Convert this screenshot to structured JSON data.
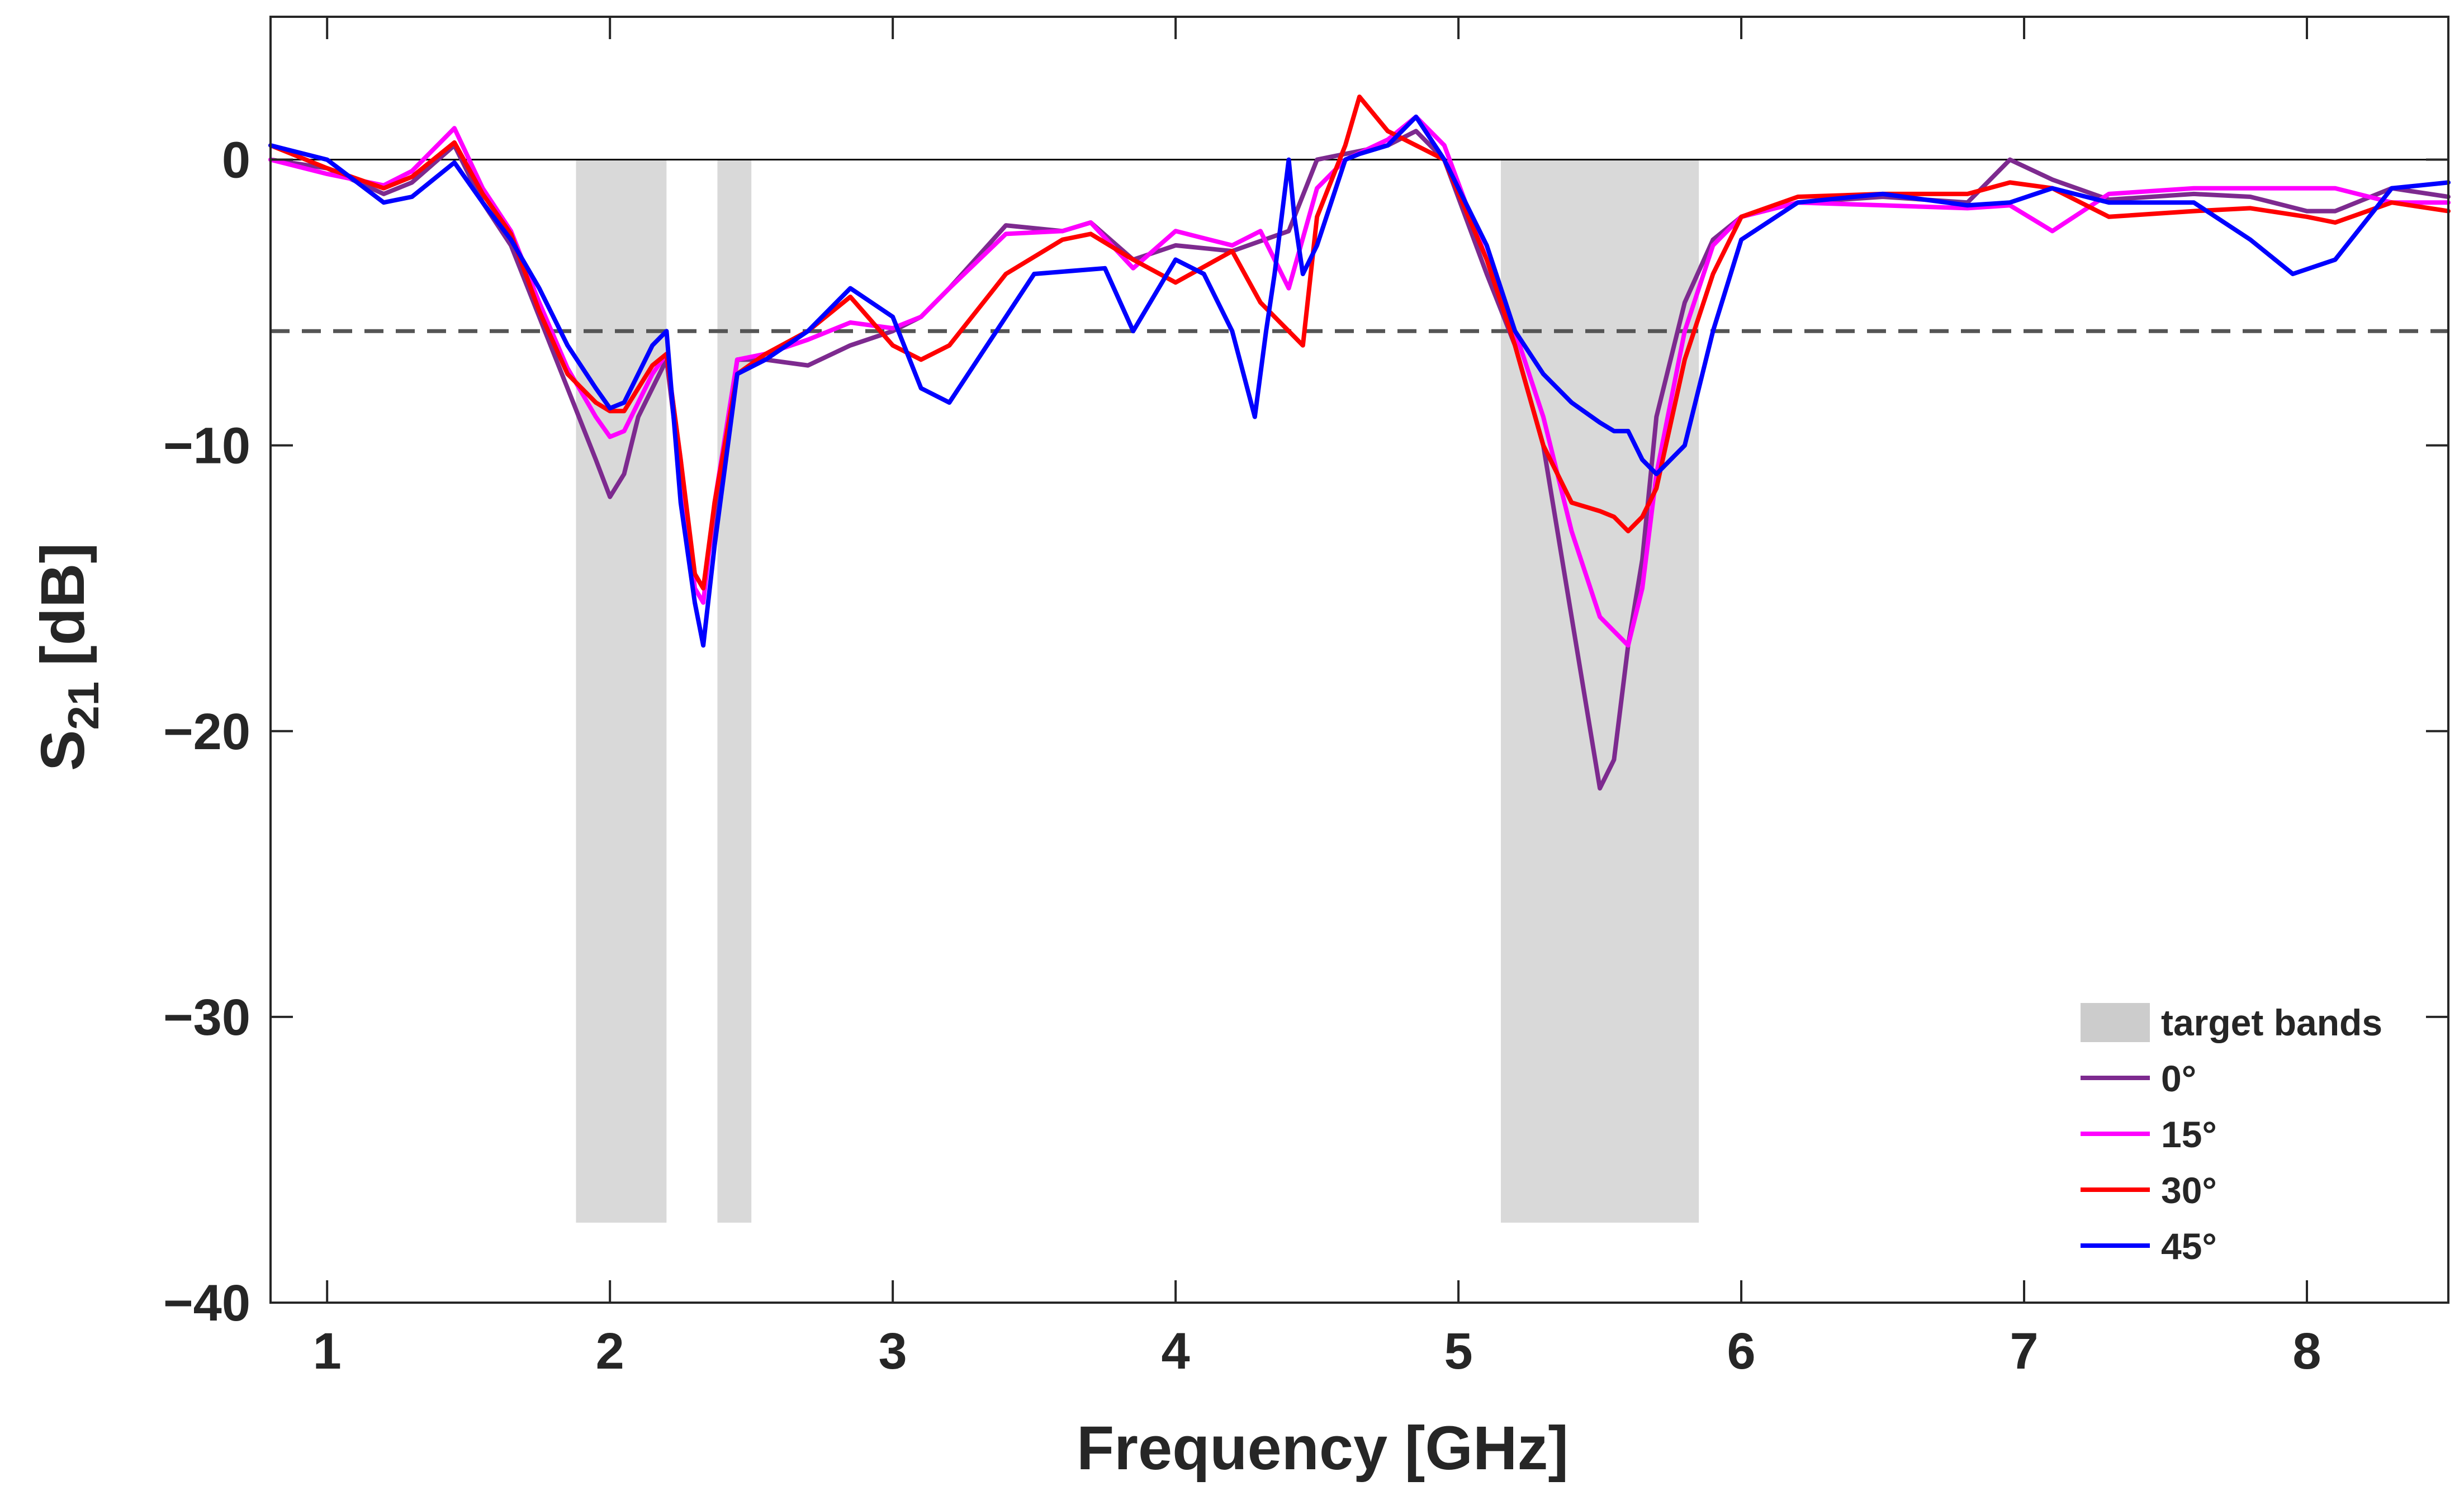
{
  "chart_data": {
    "type": "line",
    "title": "",
    "xlabel": "Frequency [GHz]",
    "ylabel_main": "S",
    "ylabel_sub": "21",
    "ylabel_unit": "[dB]",
    "xlim": [
      0.8,
      8.5
    ],
    "ylim": [
      -40,
      5
    ],
    "xticks": [
      1,
      2,
      3,
      4,
      5,
      6,
      7,
      8
    ],
    "xtick_labels": [
      "1",
      "2",
      "3",
      "4",
      "5",
      "6",
      "7",
      "8"
    ],
    "yticks": [
      -40,
      -30,
      -20,
      -10,
      0
    ],
    "ytick_labels": [
      "−40",
      "−30",
      "−20",
      "−10",
      "0"
    ],
    "reference_lines": [
      {
        "y": 0,
        "style": "solid",
        "color": "#000000"
      },
      {
        "y": -6,
        "style": "dashed",
        "color": "#555555"
      }
    ],
    "target_bands": {
      "name": "target bands",
      "color": "#d9d9d9",
      "y_range": [
        -37.2,
        0
      ],
      "bands": [
        [
          1.88,
          2.2
        ],
        [
          2.38,
          2.5
        ],
        [
          5.15,
          5.85
        ]
      ]
    },
    "legend_position": "lower-right",
    "series": [
      {
        "name": "0°",
        "color": "#7d2a8f",
        "x": [
          0.8,
          1.0,
          1.2,
          1.3,
          1.45,
          1.55,
          1.65,
          1.75,
          1.85,
          1.95,
          2.0,
          2.05,
          2.1,
          2.15,
          2.2,
          2.25,
          2.3,
          2.33,
          2.37,
          2.45,
          2.55,
          2.7,
          2.85,
          3.0,
          3.1,
          3.2,
          3.4,
          3.6,
          3.7,
          3.85,
          4.0,
          4.2,
          4.4,
          4.5,
          4.6,
          4.75,
          4.85,
          4.95,
          5.1,
          5.2,
          5.3,
          5.4,
          5.5,
          5.55,
          5.6,
          5.65,
          5.7,
          5.8,
          5.9,
          6.0,
          6.2,
          6.5,
          6.8,
          6.95,
          7.1,
          7.3,
          7.6,
          7.8,
          8.0,
          8.1,
          8.3,
          8.5
        ],
        "values": [
          0.0,
          -0.3,
          -1.2,
          -0.8,
          0.5,
          -1.5,
          -3.0,
          -5.5,
          -8.0,
          -10.5,
          -11.8,
          -11.0,
          -9.0,
          -8.0,
          -7.0,
          -11.0,
          -14.5,
          -15.0,
          -12.5,
          -7.0,
          -7.0,
          -7.2,
          -6.5,
          -6.0,
          -5.5,
          -4.5,
          -2.3,
          -2.5,
          -2.2,
          -3.5,
          -3.0,
          -3.2,
          -2.5,
          0.0,
          0.2,
          0.5,
          1.0,
          0.0,
          -4.0,
          -6.5,
          -10.0,
          -16.0,
          -22.0,
          -21.0,
          -17.0,
          -14.0,
          -9.0,
          -5.0,
          -2.8,
          -2.0,
          -1.5,
          -1.3,
          -1.5,
          0.0,
          -0.7,
          -1.4,
          -1.2,
          -1.3,
          -1.8,
          -1.8,
          -1.0,
          -1.3
        ]
      },
      {
        "name": "15°",
        "color": "#ff00ff",
        "x": [
          0.8,
          1.0,
          1.2,
          1.3,
          1.45,
          1.55,
          1.65,
          1.75,
          1.85,
          1.95,
          2.0,
          2.05,
          2.1,
          2.15,
          2.2,
          2.25,
          2.3,
          2.33,
          2.37,
          2.45,
          2.55,
          2.7,
          2.85,
          3.0,
          3.1,
          3.2,
          3.4,
          3.6,
          3.7,
          3.85,
          4.0,
          4.2,
          4.3,
          4.4,
          4.5,
          4.6,
          4.75,
          4.85,
          4.95,
          5.1,
          5.2,
          5.3,
          5.4,
          5.5,
          5.55,
          5.6,
          5.65,
          5.7,
          5.8,
          5.9,
          6.0,
          6.2,
          6.5,
          6.8,
          6.95,
          7.1,
          7.3,
          7.6,
          7.8,
          8.0,
          8.1,
          8.3,
          8.5
        ],
        "values": [
          0.0,
          -0.5,
          -0.9,
          -0.4,
          1.1,
          -1.0,
          -2.5,
          -5.0,
          -7.3,
          -9.0,
          -9.7,
          -9.5,
          -8.5,
          -7.5,
          -6.8,
          -10.5,
          -15.0,
          -15.5,
          -12.0,
          -7.0,
          -6.8,
          -6.3,
          -5.7,
          -5.9,
          -5.5,
          -4.5,
          -2.6,
          -2.5,
          -2.2,
          -3.8,
          -2.5,
          -3.0,
          -2.5,
          -4.5,
          -1.0,
          0.0,
          0.7,
          1.5,
          0.5,
          -3.5,
          -6.0,
          -9.0,
          -13.0,
          -16.0,
          -16.5,
          -17.0,
          -15.0,
          -11.0,
          -6.0,
          -3.0,
          -2.0,
          -1.5,
          -1.6,
          -1.7,
          -1.6,
          -2.5,
          -1.2,
          -1.0,
          -1.0,
          -1.0,
          -1.0,
          -1.5,
          -1.5
        ]
      },
      {
        "name": "30°",
        "color": "#ff0000",
        "x": [
          0.8,
          1.0,
          1.2,
          1.3,
          1.45,
          1.55,
          1.65,
          1.75,
          1.85,
          1.95,
          2.0,
          2.05,
          2.1,
          2.15,
          2.2,
          2.25,
          2.3,
          2.33,
          2.37,
          2.45,
          2.55,
          2.7,
          2.85,
          3.0,
          3.1,
          3.2,
          3.4,
          3.6,
          3.7,
          3.85,
          4.0,
          4.2,
          4.3,
          4.4,
          4.45,
          4.5,
          4.6,
          4.65,
          4.75,
          4.85,
          4.95,
          5.1,
          5.2,
          5.3,
          5.4,
          5.5,
          5.55,
          5.6,
          5.65,
          5.7,
          5.8,
          5.9,
          6.0,
          6.2,
          6.5,
          6.8,
          6.95,
          7.1,
          7.3,
          7.6,
          7.8,
          8.0,
          8.1,
          8.3,
          8.5
        ],
        "values": [
          0.5,
          -0.3,
          -1.0,
          -0.6,
          0.6,
          -1.2,
          -2.6,
          -5.3,
          -7.5,
          -8.5,
          -8.8,
          -8.8,
          -8.0,
          -7.2,
          -6.8,
          -10.5,
          -14.5,
          -15.0,
          -12.0,
          -7.5,
          -6.8,
          -6.0,
          -4.8,
          -6.5,
          -7.0,
          -6.5,
          -4.0,
          -2.8,
          -2.6,
          -3.5,
          -4.3,
          -3.2,
          -5.0,
          -6.0,
          -6.5,
          -2.0,
          0.5,
          2.2,
          1.0,
          0.5,
          0.0,
          -3.5,
          -6.5,
          -10.0,
          -12.0,
          -12.3,
          -12.5,
          -13.0,
          -12.5,
          -11.5,
          -7.0,
          -4.0,
          -2.0,
          -1.3,
          -1.2,
          -1.2,
          -0.8,
          -1.0,
          -2.0,
          -1.8,
          -1.7,
          -2.0,
          -2.2,
          -1.5,
          -1.8
        ]
      },
      {
        "name": "45°",
        "color": "#0000ff",
        "x": [
          0.8,
          1.0,
          1.2,
          1.3,
          1.45,
          1.55,
          1.65,
          1.75,
          1.85,
          1.95,
          2.0,
          2.05,
          2.1,
          2.15,
          2.2,
          2.25,
          2.3,
          2.33,
          2.37,
          2.45,
          2.55,
          2.7,
          2.85,
          3.0,
          3.1,
          3.2,
          3.3,
          3.5,
          3.75,
          3.85,
          4.0,
          4.1,
          4.2,
          4.28,
          4.32,
          4.35,
          4.4,
          4.42,
          4.45,
          4.5,
          4.6,
          4.65,
          4.75,
          4.85,
          4.95,
          5.1,
          5.2,
          5.3,
          5.4,
          5.5,
          5.55,
          5.6,
          5.65,
          5.7,
          5.8,
          5.9,
          6.0,
          6.2,
          6.5,
          6.8,
          6.95,
          7.1,
          7.3,
          7.6,
          7.8,
          7.95,
          8.1,
          8.3,
          8.5
        ],
        "values": [
          0.5,
          0.0,
          -1.5,
          -1.3,
          -0.1,
          -1.5,
          -2.8,
          -4.5,
          -6.5,
          -8.0,
          -8.7,
          -8.5,
          -7.5,
          -6.5,
          -6.0,
          -12.0,
          -15.5,
          -17.0,
          -13.5,
          -7.5,
          -7.0,
          -6.0,
          -4.5,
          -5.5,
          -8.0,
          -8.5,
          -7.0,
          -4.0,
          -3.8,
          -6.0,
          -3.5,
          -4.0,
          -6.0,
          -9.0,
          -6.0,
          -4.0,
          0.0,
          -2.0,
          -4.0,
          -3.0,
          0.0,
          0.2,
          0.5,
          1.5,
          0.0,
          -3.0,
          -6.0,
          -7.5,
          -8.5,
          -9.2,
          -9.5,
          -9.5,
          -10.5,
          -11.0,
          -10.0,
          -6.0,
          -2.8,
          -1.5,
          -1.2,
          -1.6,
          -1.5,
          -1.0,
          -1.5,
          -1.5,
          -2.8,
          -4.0,
          -3.5,
          -1.0,
          -0.8
        ]
      }
    ]
  }
}
